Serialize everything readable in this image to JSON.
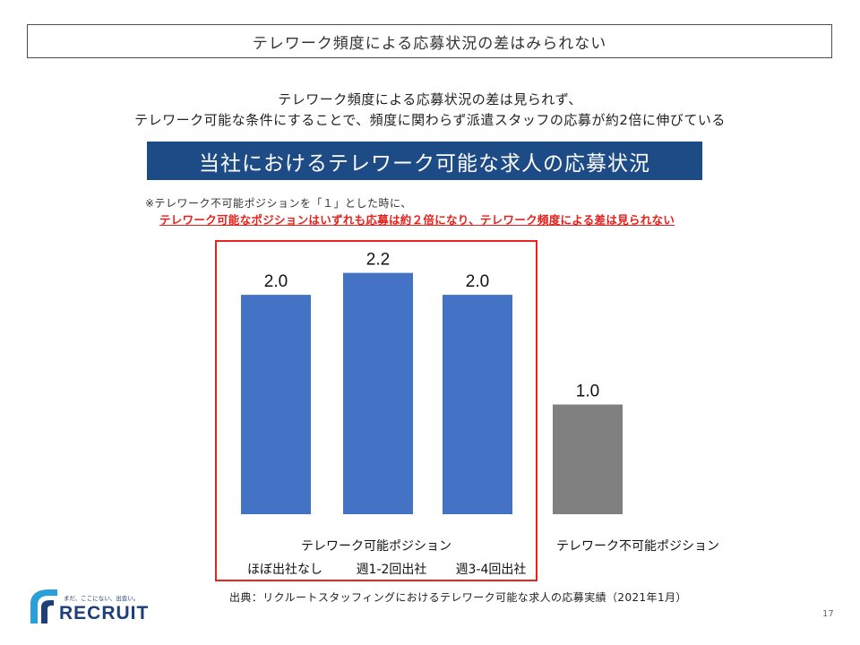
{
  "slide": {
    "title": "テレワーク頻度による応募状況の差はみられない",
    "summary_line1": "テレワーク頻度による応募状況の差は見られず、",
    "summary_line2": "テレワーク可能な条件にすることで、頻度に関わらず派遣スタッフの応募が約2倍に伸びている",
    "banner": "当社におけるテレワーク可能な求人の応募状況",
    "note_line1": "※テレワーク不可能ポジションを「１」とした時に、",
    "note_line2": "テレワーク可能なポジションはいずれも応募は約２倍になり、テレワーク頻度による差は見られない",
    "source": "出典：リクルートスタッフィングにおけるテレワーク可能な求人の応募実績（2021年1月）",
    "page_number": "17"
  },
  "logo": {
    "tagline": "まだ、ここにない、出会い。",
    "wordmark": "RECRUIT"
  },
  "chart_data": {
    "type": "bar",
    "title": "",
    "xlabel": "",
    "ylabel": "",
    "ylim": [
      0,
      2.45
    ],
    "categories": [
      "ほぼ出社なし",
      "週1-2回出社",
      "週3-4回出社",
      "テレワーク不可能ポジション"
    ],
    "values": [
      2.0,
      2.2,
      2.0,
      1.0
    ],
    "value_labels": [
      "2.0",
      "2.2",
      "2.0",
      "1.0"
    ],
    "groups": [
      {
        "label": "テレワーク可能ポジション",
        "categories": [
          "ほぼ出社なし",
          "週1-2回出社",
          "週3-4回出社"
        ]
      },
      {
        "label": "",
        "categories": [
          "テレワーク不可能ポジション"
        ]
      }
    ],
    "colors": [
      "#4472c4",
      "#4472c4",
      "#4472c4",
      "#808080"
    ],
    "grid": false,
    "legend": "none"
  }
}
